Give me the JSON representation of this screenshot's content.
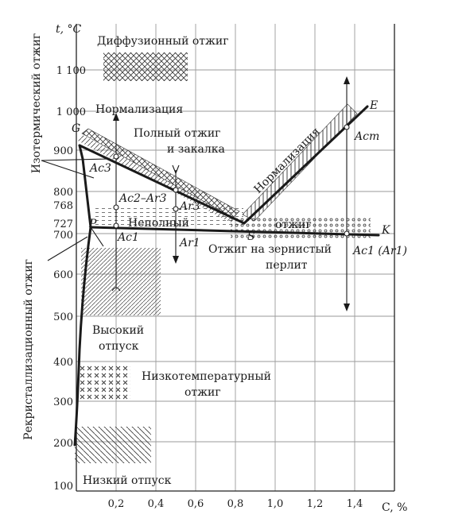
{
  "axes": {
    "y_label": "t, °C",
    "x_label": "C, %",
    "y_ticks": [
      "100",
      "200",
      "300",
      "400",
      "500",
      "600",
      "700",
      "727",
      "768",
      "800",
      "900",
      "1 000",
      "1 100"
    ],
    "x_ticks": [
      "0,2",
      "0,4",
      "0,6",
      "0,8",
      "1,0",
      "1,2",
      "1,4"
    ]
  },
  "side_labels": {
    "isothermal": "Изотермический отжиг",
    "recrystallization": "Рекристаллизационный отжиг"
  },
  "regions": {
    "diffusion": "Диффузионный отжиг",
    "normalization_top": "Нормализация",
    "normalization_diag": "Нормализация",
    "full_anneal_1": "Полный отжиг",
    "full_anneal_2": "и закалка",
    "incomplete": "Неполный",
    "anneal_word": "отжиг",
    "granular_1": "Отжиг на зернистый",
    "granular_2": "перлит",
    "high_temper_1": "Высокий",
    "high_temper_2": "отпуск",
    "low_anneal_1": "Низкотемпературный",
    "low_anneal_2": "отжиг",
    "low_temper": "Низкий отпуск"
  },
  "points": {
    "G": "G",
    "P": "P",
    "S": "S",
    "E": "E",
    "K": "K",
    "Ac3": "Ac3",
    "Ac2_Ar3": "Ac2–Ar3",
    "Ar3": "Ar3",
    "Ac1": "Ac1",
    "Ar1": "Ar1",
    "Acm": "Acm",
    "Ac1_Ar1": "Ac1 (Ar1)"
  }
}
